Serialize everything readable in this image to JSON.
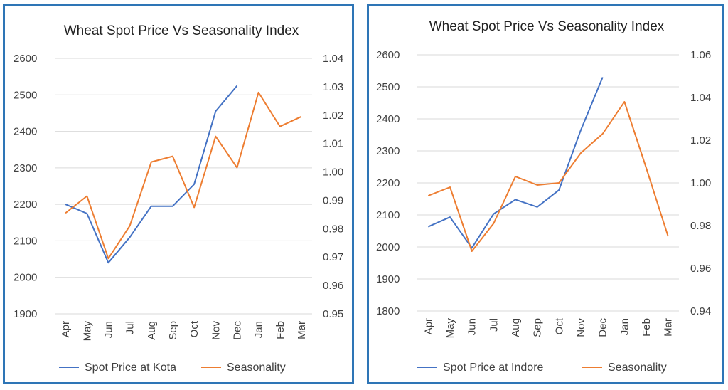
{
  "colors": {
    "price": "#4472c4",
    "seasonality": "#ed7d31",
    "border": "#2e75b6"
  },
  "chart_data": [
    {
      "type": "line",
      "title": "Wheat Spot Price Vs Seasonality Index",
      "categories": [
        "Apr",
        "May",
        "Jun",
        "Jul",
        "Aug",
        "Sep",
        "Oct",
        "Nov",
        "Dec",
        "Jan",
        "Feb",
        "Mar"
      ],
      "y_left": {
        "min": 1900,
        "max": 2600,
        "ticks": [
          "1900",
          "2000",
          "2100",
          "2200",
          "2300",
          "2400",
          "2500",
          "2600"
        ]
      },
      "y_right": {
        "min": 0.95,
        "max": 1.04,
        "ticks": [
          "0.95",
          "0.96",
          "0.97",
          "0.98",
          "0.99",
          "1.00",
          "1.01",
          "1.02",
          "1.03",
          "1.04"
        ]
      },
      "grid": true,
      "legend_position": "bottom",
      "series": [
        {
          "name": "Spot Price at Kota",
          "axis": "left",
          "color": "#4472c4",
          "values": [
            2200,
            2175,
            2040,
            2110,
            2195,
            2195,
            2255,
            2455,
            2525,
            null,
            null,
            null
          ]
        },
        {
          "name": "Seasonality",
          "axis": "right",
          "color": "#ed7d31",
          "values": [
            0.9855,
            0.9915,
            0.9695,
            0.981,
            1.0035,
            1.0055,
            0.9875,
            1.0125,
            1.0015,
            1.028,
            1.016,
            1.0195
          ]
        }
      ]
    },
    {
      "type": "line",
      "title": "Wheat Spot Price Vs Seasonality Index",
      "categories": [
        "Apr",
        "May",
        "Jun",
        "Jul",
        "Aug",
        "Sep",
        "Oct",
        "Nov",
        "Dec",
        "Jan",
        "Feb",
        "Mar"
      ],
      "y_left": {
        "min": 1800,
        "max": 2600,
        "ticks": [
          "1800",
          "1900",
          "2000",
          "2100",
          "2200",
          "2300",
          "2400",
          "2500",
          "2600"
        ]
      },
      "y_right": {
        "min": 0.94,
        "max": 1.06,
        "ticks": [
          "0.94",
          "0.96",
          "0.98",
          "1.00",
          "1.02",
          "1.04",
          "1.06"
        ]
      },
      "grid": true,
      "legend_position": "bottom",
      "series": [
        {
          "name": "Spot Price at Indore",
          "axis": "left",
          "color": "#4472c4",
          "values": [
            2063,
            2093,
            1997,
            2103,
            2148,
            2125,
            2178,
            2365,
            2530,
            null,
            null,
            null
          ]
        },
        {
          "name": "Seasonality",
          "axis": "right",
          "color": "#ed7d31",
          "values": [
            0.994,
            0.998,
            0.968,
            0.981,
            1.003,
            0.999,
            1.0,
            1.014,
            1.023,
            1.038,
            1.007,
            0.975
          ]
        }
      ]
    }
  ]
}
